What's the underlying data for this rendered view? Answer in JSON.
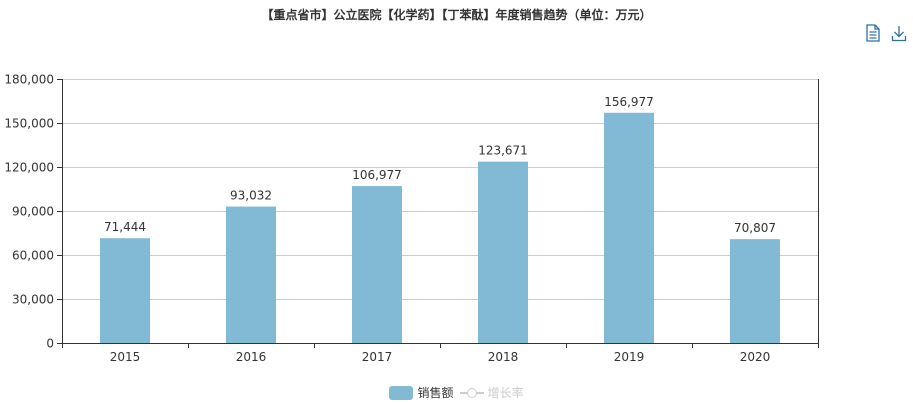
{
  "title": "【重点省市】公立医院【化学药】【丁苯酞】年度销售趋势（单位：万元）",
  "toolbar": {
    "data_view_icon": "data-view-icon",
    "download_icon": "download-icon"
  },
  "legend": {
    "bar_label": "销售额",
    "line_label": "增长率"
  },
  "colors": {
    "bar": "#82bad6",
    "grid": "#cccccc",
    "axis": "#333333"
  },
  "chart_data": {
    "type": "bar",
    "title": "【重点省市】公立医院【化学药】【丁苯酞】年度销售趋势（单位：万元）",
    "categories": [
      "2015",
      "2016",
      "2017",
      "2018",
      "2019",
      "2020"
    ],
    "series": [
      {
        "name": "销售额",
        "values": [
          71444,
          93032,
          106977,
          123671,
          156977,
          70807
        ]
      }
    ],
    "value_labels": [
      "71,444",
      "93,032",
      "106,977",
      "123,671",
      "156,977",
      "70,807"
    ],
    "ylim": [
      0,
      180000
    ],
    "yticks": [
      0,
      30000,
      60000,
      90000,
      120000,
      150000,
      180000
    ],
    "ytick_labels": [
      "0",
      "30,000",
      "60,000",
      "90,000",
      "120,000",
      "150,000",
      "180,000"
    ],
    "grid": true,
    "legend_position": "bottom-center"
  }
}
